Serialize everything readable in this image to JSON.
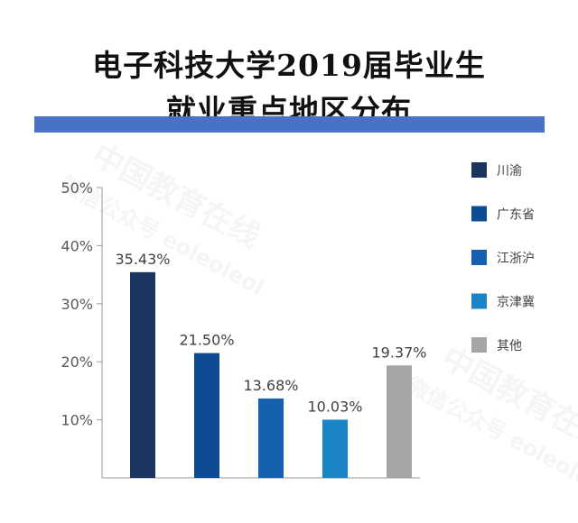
{
  "title": {
    "line1": "电子科技大学2019届毕业生",
    "line2": "就业重点地区分布"
  },
  "watermark": {
    "line1": "中国教育在线",
    "line2": "微信公众号 eoleoleol"
  },
  "chart_data": {
    "type": "bar",
    "title": "电子科技大学2019届毕业生就业重点地区分布",
    "categories": [
      "川渝",
      "广东省",
      "江浙沪",
      "京津冀",
      "其他"
    ],
    "values": [
      35.43,
      21.5,
      13.68,
      10.03,
      19.37
    ],
    "value_labels": [
      "35.43%",
      "21.50%",
      "13.68%",
      "10.03%",
      "19.37%"
    ],
    "colors": [
      "#1b355e",
      "#0d4b94",
      "#1660b0",
      "#1a84c7",
      "#a5a5a5"
    ],
    "yticks": [
      10,
      20,
      30,
      40,
      50
    ],
    "ytick_labels": [
      "10%",
      "20%",
      "30%",
      "40%",
      "50%"
    ],
    "ylim": [
      0,
      50
    ],
    "xlabel": "",
    "ylabel": "",
    "grid": false,
    "legend_position": "right"
  }
}
